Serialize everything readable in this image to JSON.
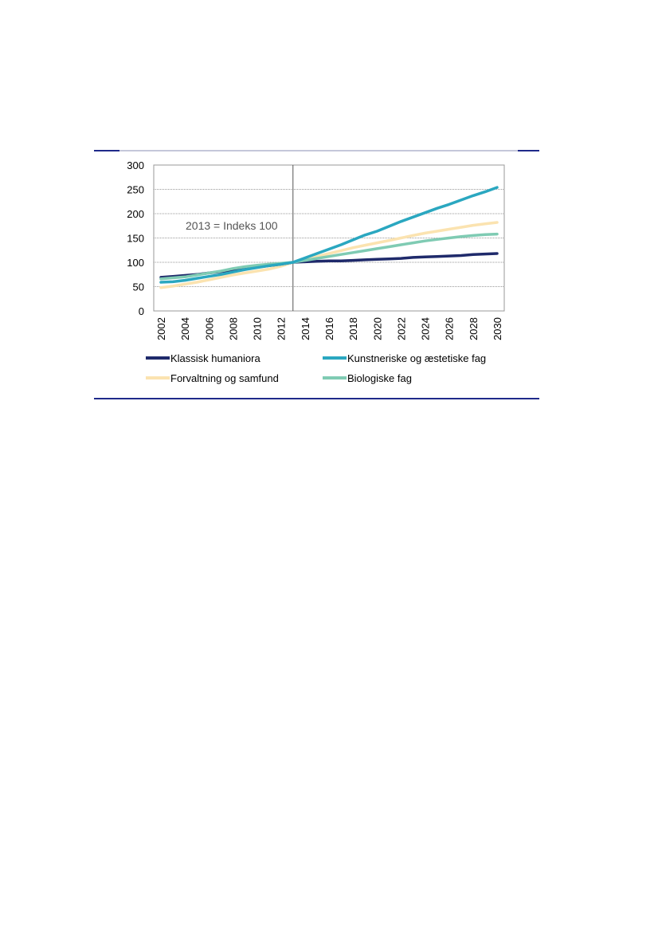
{
  "chart_data": {
    "type": "line",
    "title": "",
    "xlabel": "",
    "ylabel": "",
    "ylim": [
      0,
      300
    ],
    "xlim": [
      2002,
      2030
    ],
    "x_ticks": [
      "2002",
      "2004",
      "2006",
      "2008",
      "2010",
      "2012",
      "2014",
      "2016",
      "2018",
      "2020",
      "2022",
      "2024",
      "2026",
      "2028",
      "2030"
    ],
    "y_ticks": [
      "0",
      "50",
      "100",
      "150",
      "200",
      "250",
      "300"
    ],
    "grid": true,
    "legend_position": "bottom",
    "reference_line": {
      "x": 2013
    },
    "annotation": "2013 = Indeks 100",
    "x": [
      2002,
      2003,
      2004,
      2005,
      2006,
      2007,
      2008,
      2009,
      2010,
      2011,
      2012,
      2013,
      2014,
      2015,
      2016,
      2017,
      2018,
      2019,
      2020,
      2021,
      2022,
      2023,
      2024,
      2025,
      2026,
      2027,
      2028,
      2029,
      2030
    ],
    "series": [
      {
        "name": "Klassisk humaniora",
        "color": "#1f2a6b",
        "values": [
          69,
          71,
          73,
          75,
          78,
          81,
          84,
          87,
          90,
          93,
          96,
          100,
          101,
          102,
          103,
          103,
          104,
          105,
          106,
          107,
          108,
          110,
          111,
          112,
          113,
          114,
          116,
          117,
          118
        ]
      },
      {
        "name": "Kunstneriske og æstetiske fag",
        "color": "#2aa7c0",
        "values": [
          59,
          60,
          63,
          67,
          71,
          75,
          80,
          85,
          89,
          93,
          96,
          100,
          109,
          118,
          127,
          136,
          146,
          156,
          164,
          174,
          184,
          193,
          202,
          211,
          219,
          228,
          237,
          245,
          254
        ]
      },
      {
        "name": "Forvaltning og samfund",
        "color": "#fbe3b0",
        "values": [
          48,
          51,
          55,
          59,
          64,
          69,
          74,
          78,
          82,
          86,
          92,
          100,
          106,
          112,
          118,
          124,
          130,
          135,
          140,
          145,
          150,
          155,
          160,
          164,
          168,
          172,
          176,
          179,
          182
        ]
      },
      {
        "name": "Biologiske fag",
        "color": "#7fcbb3",
        "values": [
          66,
          68,
          70,
          74,
          78,
          82,
          87,
          91,
          94,
          96,
          98,
          100,
          104,
          108,
          112,
          116,
          120,
          124,
          128,
          132,
          136,
          140,
          144,
          147,
          150,
          153,
          155,
          157,
          158
        ]
      }
    ]
  }
}
